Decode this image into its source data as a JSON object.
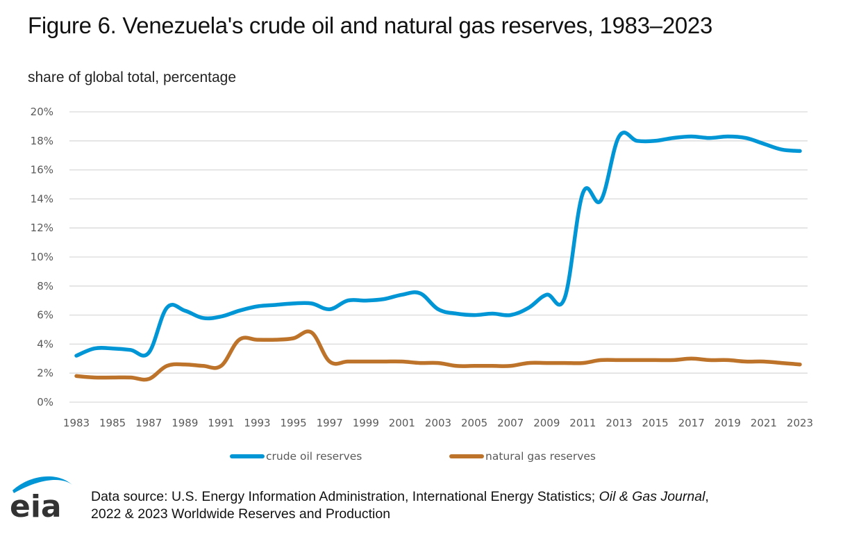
{
  "header": {
    "title": "Figure 6. Venezuela's crude oil and natural gas reserves, 1983–2023",
    "subtitle": "share of global total, percentage"
  },
  "footer": {
    "logo_text": "eia",
    "source_prefix": "Data source: U.S. Energy Information Administration, International Energy Statistics; ",
    "source_italic": "Oil & Gas Journal",
    "source_suffix": ",",
    "source_line2": "2022 & 2023 Worldwide Reserves and Production"
  },
  "colors": {
    "crude_oil": "#0096D6",
    "natural_gas": "#BD732A",
    "grid": "#D9D9D9",
    "logo_arc": "#0096D6",
    "logo_text": "#333333"
  },
  "chart_data": {
    "type": "line",
    "title": "Figure 6. Venezuela's crude oil and natural gas reserves, 1983–2023",
    "subtitle": "share of global total, percentage",
    "xlabel": "",
    "ylabel": "share of global total, percentage",
    "x": [
      1983,
      1984,
      1985,
      1986,
      1987,
      1988,
      1989,
      1990,
      1991,
      1992,
      1993,
      1994,
      1995,
      1996,
      1997,
      1998,
      1999,
      2000,
      2001,
      2002,
      2003,
      2004,
      2005,
      2006,
      2007,
      2008,
      2009,
      2010,
      2011,
      2012,
      2013,
      2014,
      2015,
      2016,
      2017,
      2018,
      2019,
      2020,
      2021,
      2022,
      2023
    ],
    "x_tick_labels": [
      "1983",
      "1985",
      "1987",
      "1989",
      "1991",
      "1993",
      "1995",
      "1997",
      "1999",
      "2001",
      "2003",
      "2005",
      "2007",
      "2009",
      "2011",
      "2013",
      "2015",
      "2017",
      "2019",
      "2021",
      "2023"
    ],
    "y_tick_labels": [
      "0%",
      "2%",
      "4%",
      "6%",
      "8%",
      "10%",
      "12%",
      "14%",
      "16%",
      "18%",
      "20%"
    ],
    "y_ticks": [
      0,
      2,
      4,
      6,
      8,
      10,
      12,
      14,
      16,
      18,
      20
    ],
    "ylim": [
      0,
      20
    ],
    "xlim": [
      1983,
      2023
    ],
    "grid": "horizontal",
    "legend_position": "bottom",
    "series": [
      {
        "name": "crude oil reserves",
        "color": "#0096D6",
        "values": [
          3.2,
          3.7,
          3.7,
          3.6,
          3.4,
          6.5,
          6.3,
          5.8,
          5.9,
          6.3,
          6.6,
          6.7,
          6.8,
          6.8,
          6.4,
          7.0,
          7.0,
          7.1,
          7.4,
          7.5,
          6.4,
          6.1,
          6.0,
          6.1,
          6.0,
          6.5,
          7.4,
          7.2,
          14.4,
          13.9,
          18.3,
          18.0,
          18.0,
          18.2,
          18.3,
          18.2,
          18.3,
          18.2,
          17.8,
          17.4,
          17.3
        ]
      },
      {
        "name": "natural gas reserves",
        "color": "#BD732A",
        "values": [
          1.8,
          1.7,
          1.7,
          1.7,
          1.6,
          2.5,
          2.6,
          2.5,
          2.5,
          4.3,
          4.3,
          4.3,
          4.4,
          4.8,
          2.8,
          2.8,
          2.8,
          2.8,
          2.8,
          2.7,
          2.7,
          2.5,
          2.5,
          2.5,
          2.5,
          2.7,
          2.7,
          2.7,
          2.7,
          2.9,
          2.9,
          2.9,
          2.9,
          2.9,
          3.0,
          2.9,
          2.9,
          2.8,
          2.8,
          2.7,
          2.6
        ]
      }
    ]
  }
}
